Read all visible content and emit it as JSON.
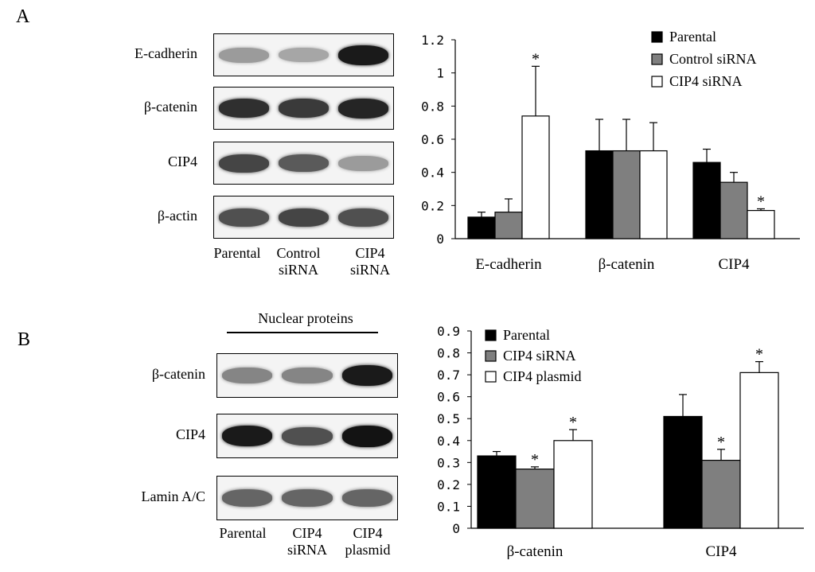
{
  "panelA": {
    "letter": "A",
    "blot": {
      "rows": [
        {
          "label": "E-cadherin",
          "intensities": [
            0.35,
            0.3,
            0.95
          ]
        },
        {
          "label": "β-catenin",
          "intensities": [
            0.85,
            0.8,
            0.9
          ]
        },
        {
          "label": "CIP4",
          "intensities": [
            0.75,
            0.65,
            0.35
          ]
        },
        {
          "label": "β-actin",
          "intensities": [
            0.7,
            0.75,
            0.7
          ]
        }
      ],
      "lanes": [
        {
          "line1": "Parental",
          "line2": ""
        },
        {
          "line1": "Control",
          "line2": "siRNA"
        },
        {
          "line1": "CIP4",
          "line2": "siRNA"
        }
      ]
    }
  },
  "panelB": {
    "letter": "B",
    "blot": {
      "header": "Nuclear proteins",
      "rows": [
        {
          "label": "β-catenin",
          "intensities": [
            0.45,
            0.45,
            0.95
          ]
        },
        {
          "label": "CIP4",
          "intensities": [
            0.95,
            0.7,
            0.98
          ]
        },
        {
          "label": "Lamin A/C",
          "intensities": [
            0.6,
            0.6,
            0.6
          ]
        }
      ],
      "lanes": [
        {
          "line1": "Parental",
          "line2": ""
        },
        {
          "line1": "CIP4",
          "line2": "siRNA"
        },
        {
          "line1": "CIP4",
          "line2": "plasmid"
        }
      ]
    }
  },
  "colors": {
    "series1": "#000000",
    "series2": "#7f7f7f",
    "series3": "#ffffff"
  },
  "chart_data": [
    {
      "type": "bar",
      "categories": [
        "E-cadherin",
        "β-catenin",
        "CIP4"
      ],
      "series": [
        {
          "name": "Parental",
          "values": [
            0.13,
            0.53,
            0.46
          ],
          "errors": [
            0.03,
            0.19,
            0.08
          ]
        },
        {
          "name": "Control siRNA",
          "values": [
            0.16,
            0.53,
            0.34
          ],
          "errors": [
            0.08,
            0.19,
            0.06
          ]
        },
        {
          "name": "CIP4 siRNA",
          "values": [
            0.74,
            0.53,
            0.17
          ],
          "errors": [
            0.3,
            0.17,
            0.01
          ]
        }
      ],
      "significance": [
        [
          false,
          false,
          false
        ],
        [
          false,
          false,
          false
        ],
        [
          true,
          false,
          true
        ]
      ],
      "significance_mark": "*",
      "ylim": [
        0,
        1.2
      ],
      "yticks": [
        "0",
        "0.2",
        "0.4",
        "0.6",
        "0.8",
        "1",
        "1.2"
      ],
      "xlabel": "",
      "ylabel": "",
      "title": "",
      "legend": "top-right",
      "grid": false
    },
    {
      "type": "bar",
      "categories": [
        "β-catenin",
        "CIP4"
      ],
      "series": [
        {
          "name": "Parental",
          "values": [
            0.33,
            0.51
          ],
          "errors": [
            0.02,
            0.1
          ]
        },
        {
          "name": "CIP4 siRNA",
          "values": [
            0.27,
            0.31
          ],
          "errors": [
            0.01,
            0.05
          ]
        },
        {
          "name": "CIP4 plasmid",
          "values": [
            0.4,
            0.71
          ],
          "errors": [
            0.05,
            0.05
          ]
        }
      ],
      "significance": [
        [
          false,
          false
        ],
        [
          true,
          true
        ],
        [
          true,
          true
        ]
      ],
      "significance_mark": "*",
      "ylim": [
        0,
        0.9
      ],
      "yticks": [
        "0",
        "0.1",
        "0.2",
        "0.3",
        "0.4",
        "0.5",
        "0.6",
        "0.7",
        "0.8",
        "0.9"
      ],
      "xlabel": "",
      "ylabel": "",
      "title": "",
      "legend": "top-left",
      "grid": false
    }
  ]
}
